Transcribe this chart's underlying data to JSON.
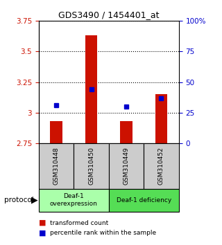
{
  "title": "GDS3490 / 1454401_at",
  "samples": [
    "GSM310448",
    "GSM310450",
    "GSM310449",
    "GSM310452"
  ],
  "bar_values": [
    2.93,
    3.63,
    2.93,
    3.15
  ],
  "bar_base": 2.75,
  "percentile_values": [
    3.06,
    3.19,
    3.05,
    3.12
  ],
  "bar_color": "#cc1100",
  "percentile_color": "#0000cc",
  "ylim_left": [
    2.75,
    3.75
  ],
  "ylim_right": [
    0,
    100
  ],
  "yticks_left": [
    2.75,
    3.0,
    3.25,
    3.5,
    3.75
  ],
  "yticks_right": [
    0,
    25,
    50,
    75,
    100
  ],
  "ytick_labels_left": [
    "2.75",
    "3",
    "3.25",
    "3.5",
    "3.75"
  ],
  "ytick_labels_right": [
    "0",
    "25",
    "50",
    "75",
    "100%"
  ],
  "hgrid_at": [
    3.0,
    3.25,
    3.5,
    3.75
  ],
  "groups": [
    {
      "label": "Deaf-1\noverexpression",
      "color": "#aaffaa"
    },
    {
      "label": "Deaf-1 deficiency",
      "color": "#55dd55"
    }
  ],
  "protocol_label": "protocol",
  "legend_bar_label": "transformed count",
  "legend_pct_label": "percentile rank within the sample",
  "bar_width": 0.35,
  "background_color": "#ffffff",
  "plot_bg": "#ffffff",
  "left_tick_color": "#cc1100",
  "right_tick_color": "#0000cc",
  "sample_box_color": "#cccccc"
}
